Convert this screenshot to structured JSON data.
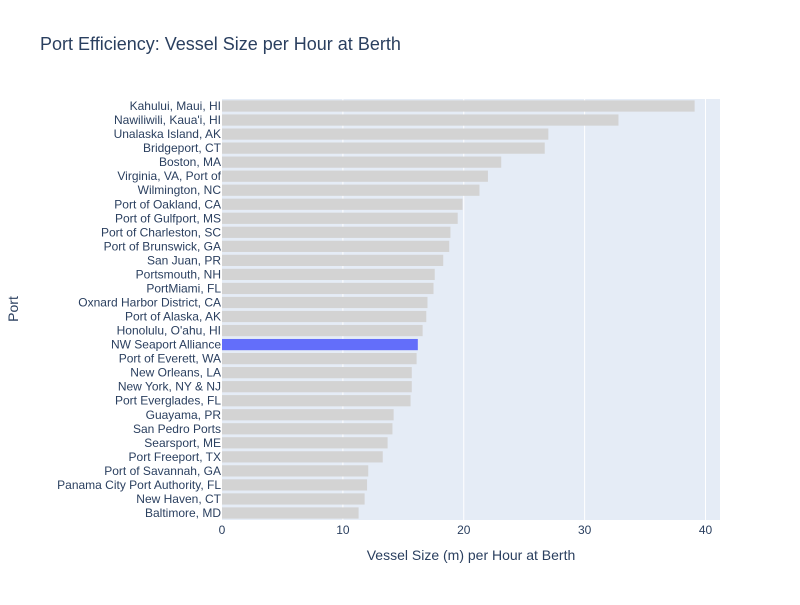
{
  "chart_data": {
    "type": "bar",
    "orientation": "horizontal",
    "title": "Port Efficiency: Vessel Size per Hour at Berth",
    "xlabel": "Vessel Size (m) per Hour at Berth",
    "ylabel": "Port",
    "xlim": [
      0,
      41.2
    ],
    "xticks": [
      0,
      10,
      20,
      30,
      40
    ],
    "grid": true,
    "highlight": "NW Seaport Alliance",
    "colors": {
      "default": "#d3d3d3",
      "highlight": "#636efa",
      "plot_bg": "#e5ecf6",
      "text": "#2a3f5f"
    },
    "categories": [
      "Kahului, Maui, HI",
      "Nawiliwili, Kaua'i, HI",
      "Unalaska Island, AK",
      "Bridgeport, CT",
      "Boston, MA",
      "Virginia, VA, Port of",
      "Wilmington, NC",
      "Port of Oakland, CA",
      "Port of Gulfport, MS",
      "Port of Charleston, SC",
      "Port of Brunswick, GA",
      "San Juan, PR",
      "Portsmouth, NH",
      "PortMiami, FL",
      "Oxnard Harbor District, CA",
      "Port of Alaska, AK",
      "Honolulu, O'ahu, HI",
      "NW Seaport Alliance",
      "Port of Everett, WA",
      "New Orleans, LA",
      "New York, NY & NJ",
      "Port Everglades, FL",
      "Guayama, PR",
      "San Pedro Ports",
      "Searsport, ME",
      "Port Freeport, TX",
      "Port of Savannah, GA",
      "Panama City Port Authority, FL",
      "New Haven, CT",
      "Baltimore, MD"
    ],
    "values": [
      39.1,
      32.8,
      27.0,
      26.7,
      23.1,
      22.0,
      21.3,
      19.9,
      19.5,
      18.9,
      18.8,
      18.3,
      17.6,
      17.5,
      17.0,
      16.9,
      16.6,
      16.2,
      16.1,
      15.7,
      15.7,
      15.6,
      14.2,
      14.1,
      13.7,
      13.3,
      12.1,
      12.0,
      11.8,
      11.3
    ]
  }
}
